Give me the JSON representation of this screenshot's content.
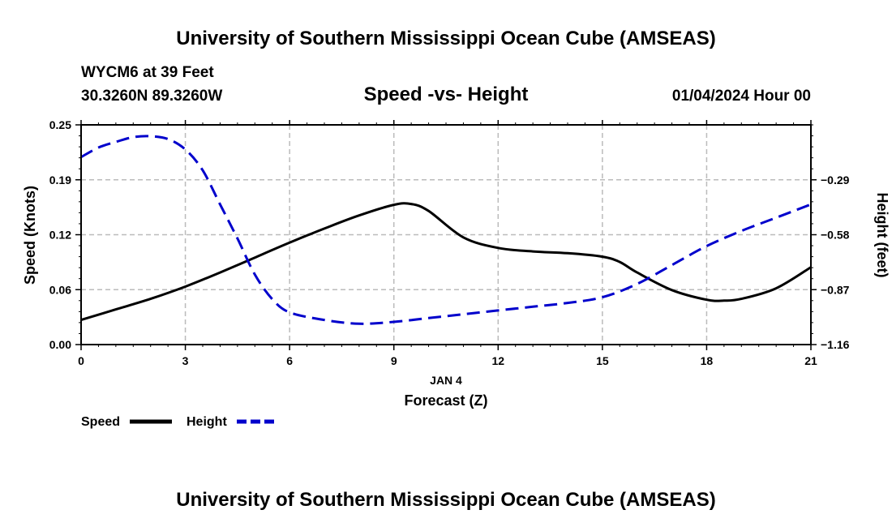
{
  "page": {
    "title": "University of Southern Mississippi Ocean Cube (AMSEAS)",
    "footer_title": "University of Southern Mississippi Ocean Cube (AMSEAS)",
    "station": "WYCM6 at 39 Feet",
    "location": "30.3260N  89.3260W",
    "subtitle": "Speed -vs- Height",
    "datetime": "01/04/2024 Hour 00"
  },
  "legend": {
    "speed_label": "Speed",
    "height_label": "Height"
  },
  "colors": {
    "speed": "#000000",
    "height": "#0000cc",
    "grid": "#bbbbbb"
  },
  "chart_data": {
    "type": "line",
    "title": "Speed -vs- Height",
    "xlabel": "Forecast (Z)",
    "xsublabel": "JAN 4",
    "ylabel": "Speed (Knots)",
    "y2label": "Height (feet)",
    "xlim": [
      0,
      21
    ],
    "ylim": [
      0,
      0.25
    ],
    "y2lim": [
      -1.16,
      0.0
    ],
    "xticks": [
      0,
      3,
      6,
      9,
      12,
      15,
      18,
      21
    ],
    "xtick_labels": [
      "0",
      "3",
      "6",
      "9",
      "12",
      "15",
      "18",
      "21"
    ],
    "yticks": [
      0,
      0.0625,
      0.125,
      0.1875,
      0.25
    ],
    "ytick_labels": [
      "0.00",
      "0.06",
      "0.12",
      "0.19",
      "0.25"
    ],
    "y2ticks": [
      -1.16,
      -0.87,
      -0.58,
      -0.29
    ],
    "y2tick_labels": [
      "−1.16",
      "−0.87",
      "−0.58",
      "−0.29"
    ],
    "grid": true,
    "series": [
      {
        "name": "Speed",
        "axis": "left",
        "style": "solid",
        "x": [
          0,
          1,
          2,
          3,
          4,
          5,
          6,
          7,
          8,
          9,
          9.5,
          10,
          11,
          12,
          13,
          14,
          15,
          15.5,
          16,
          17,
          18,
          18.5,
          19,
          20,
          21
        ],
        "y": [
          0.028,
          0.04,
          0.052,
          0.066,
          0.082,
          0.099,
          0.116,
          0.132,
          0.147,
          0.159,
          0.16,
          0.152,
          0.122,
          0.11,
          0.106,
          0.104,
          0.1,
          0.094,
          0.082,
          0.062,
          0.051,
          0.05,
          0.052,
          0.064,
          0.088
        ]
      },
      {
        "name": "Height",
        "axis": "right",
        "style": "dashed",
        "x": [
          0,
          0.5,
          1,
          1.5,
          2,
          2.5,
          3,
          3.5,
          4,
          4.5,
          5,
          5.5,
          6,
          7,
          8,
          9,
          10,
          11,
          12,
          13,
          14,
          15,
          16,
          17,
          18,
          19,
          20,
          21
        ],
        "y": [
          -0.17,
          -0.12,
          -0.09,
          -0.065,
          -0.06,
          -0.075,
          -0.13,
          -0.24,
          -0.42,
          -0.6,
          -0.79,
          -0.92,
          -0.99,
          -1.03,
          -1.05,
          -1.04,
          -1.02,
          -1.0,
          -0.98,
          -0.96,
          -0.94,
          -0.91,
          -0.84,
          -0.74,
          -0.64,
          -0.56,
          -0.49,
          -0.42
        ]
      }
    ]
  }
}
